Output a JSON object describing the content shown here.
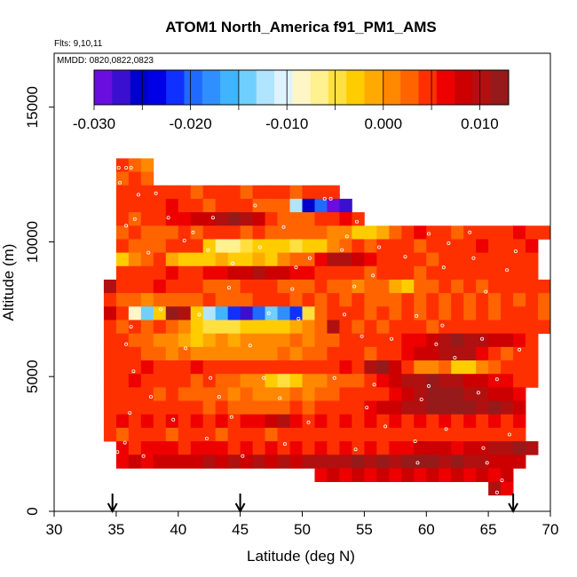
{
  "chart_data": {
    "type": "heatmap",
    "title": "ATOM1 North_America f91_PM1_AMS",
    "annotations": [
      "Flts: 9,10,11",
      "MMDD: 0820,0822,0823"
    ],
    "xlabel": "Latitude (deg N)",
    "ylabel": "Altitude (m)",
    "xlim": [
      30,
      70
    ],
    "ylim": [
      0,
      17500
    ],
    "xticks": [
      "30",
      "35",
      "40",
      "45",
      "50",
      "55",
      "60",
      "65",
      "70"
    ],
    "yticks": [
      "0",
      "5000",
      "10000",
      "15000"
    ],
    "colorbar": {
      "range": [
        -0.03,
        0.013
      ],
      "ticks": [
        "-0.030",
        "-0.020",
        "-0.010",
        "0.000",
        "0.010"
      ],
      "colors": [
        "#6a0ddf",
        "#3a0fd0",
        "#0000cc",
        "#0000e6",
        "#1030ff",
        "#1f6aff",
        "#2f8fff",
        "#40b4ff",
        "#6fd0ff",
        "#b0e4ff",
        "#dff3ff",
        "#fff6c8",
        "#fff090",
        "#ffe040",
        "#ffcc00",
        "#ffaa00",
        "#ff8800",
        "#ff6400",
        "#ff3000",
        "#ee0000",
        "#cc0000",
        "#b01010",
        "#961a1a"
      ]
    },
    "arrows_at_latitude": [
      34.7,
      45,
      67
    ],
    "lat_step": 1,
    "rows": [
      {
        "alt": 12850,
        "lat0": 35,
        "v": [
          0.004,
          0.003,
          0.001
        ]
      },
      {
        "alt": 12350,
        "lat0": 35,
        "v": [
          0.003,
          0.005,
          0.002
        ]
      },
      {
        "alt": 11850,
        "lat0": 35,
        "v": [
          0.005,
          0.004,
          0.004,
          0.004,
          0.005,
          0.004,
          0.003,
          0.004,
          0.005,
          0.004,
          0.003,
          0.004,
          0.005,
          0.004,
          0.003,
          0.004,
          0.005,
          0.004
        ]
      },
      {
        "alt": 11350,
        "lat0": 35,
        "v": [
          0.004,
          0.005,
          0.004,
          0.005,
          0.006,
          0.005,
          0.004,
          0.003,
          0.004,
          0.005,
          0.004,
          0.003,
          0.002,
          0.003,
          -0.012,
          -0.025,
          -0.02,
          -0.03,
          -0.028
        ]
      },
      {
        "alt": 10850,
        "lat0": 35,
        "v": [
          0.004,
          0.003,
          0.004,
          0.005,
          0.006,
          0.007,
          0.008,
          0.009,
          0.011,
          0.012,
          0.011,
          0.009,
          0.005,
          0.003,
          0.002,
          0.003,
          0.004,
          0.005,
          0.006,
          0.005
        ]
      },
      {
        "alt": 10350,
        "lat0": 35,
        "v": [
          0.003,
          0.004,
          0.003,
          0.002,
          0.003,
          0.004,
          0.003,
          0.004,
          0.005,
          0.004,
          0.003,
          0.004,
          0.003,
          0.003,
          0.002,
          0.003,
          0.002,
          0.001,
          0.0,
          -0.002,
          -0.003,
          -0.001,
          0.002,
          0.004,
          0.006,
          0.005,
          0.004,
          0.003,
          0.004,
          0.005,
          0.004,
          0.005,
          0.006,
          0.005,
          0.004
        ]
      },
      {
        "alt": 9850,
        "lat0": 35,
        "v": [
          0.004,
          0.003,
          0.002,
          0.003,
          0.004,
          0.005,
          0.004,
          -0.002,
          -0.006,
          -0.007,
          -0.004,
          -0.003,
          -0.002,
          -0.003,
          -0.005,
          -0.003,
          -0.002,
          0.0,
          0.003,
          0.004,
          0.003,
          0.004,
          0.005,
          0.004,
          0.003,
          0.004,
          0.005,
          0.004,
          0.005,
          0.006,
          0.005,
          0.004,
          0.005,
          0.006
        ]
      },
      {
        "alt": 9350,
        "lat0": 35,
        "v": [
          -0.003,
          0.0,
          0.002,
          0.004,
          -0.001,
          -0.002,
          -0.003,
          -0.002,
          -0.001,
          -0.003,
          -0.002,
          -0.001,
          -0.002,
          0.0,
          0.002,
          0.003,
          0.006,
          0.01,
          0.011,
          0.009,
          0.006,
          0.005,
          0.004,
          0.005,
          0.004,
          0.003,
          0.004,
          0.005,
          0.004,
          0.005,
          0.004,
          0.005,
          0.004,
          0.005
        ]
      },
      {
        "alt": 8850,
        "lat0": 35,
        "v": [
          0.004,
          0.005,
          0.004,
          0.005,
          0.006,
          0.005,
          0.004,
          0.006,
          0.007,
          0.008,
          0.009,
          0.01,
          0.009,
          0.008,
          0.007,
          0.006,
          0.005,
          0.004,
          0.005,
          0.004,
          0.003,
          0.004,
          0.005,
          0.004,
          0.003,
          0.004,
          0.005,
          0.004,
          0.005,
          0.004,
          0.005,
          0.004,
          0.005,
          0.004
        ]
      },
      {
        "alt": 8350,
        "lat0": 34,
        "v": [
          0.01,
          0.005,
          0.004,
          0.005,
          0.006,
          0.005,
          0.004,
          0.005,
          0.003,
          0.002,
          0.003,
          0.004,
          0.005,
          0.004,
          0.003,
          0.002,
          0.003,
          0.004,
          0.003,
          0.002,
          0.001,
          0.002,
          0.003,
          -0.001,
          -0.003,
          0.002,
          0.003,
          0.004,
          0.003,
          0.004,
          0.003,
          0.004,
          0.005,
          0.004,
          0.005,
          0.004
        ]
      },
      {
        "alt": 7850,
        "lat0": 34,
        "v": [
          0.004,
          0.003,
          0.002,
          0.001,
          0.002,
          0.003,
          0.002,
          0.003,
          0.004,
          0.003,
          0.002,
          0.003,
          0.004,
          0.005,
          0.004,
          0.003,
          0.004,
          0.003,
          0.004,
          0.003,
          0.004,
          0.003,
          0.002,
          0.003,
          0.004,
          0.003,
          0.004,
          0.003,
          0.004,
          0.003,
          0.004,
          0.003,
          0.004,
          0.003,
          0.004,
          0.003
        ]
      },
      {
        "alt": 7350,
        "lat0": 34,
        "v": [
          0.008,
          0.005,
          -0.008,
          -0.014,
          -0.002,
          0.012,
          0.01,
          -0.003,
          -0.012,
          -0.016,
          -0.022,
          -0.028,
          -0.02,
          -0.014,
          -0.018,
          -0.022,
          -0.004,
          0.002,
          0.004,
          0.005,
          0.004,
          0.003,
          0.004,
          0.003,
          0.004,
          0.003,
          0.004,
          0.003,
          0.004,
          0.003,
          0.004,
          0.003,
          0.004,
          0.005,
          0.004,
          0.003
        ]
      },
      {
        "alt": 6850,
        "lat0": 34,
        "v": [
          0.004,
          0.003,
          0.004,
          0.003,
          0.004,
          0.003,
          0.001,
          -0.003,
          -0.004,
          -0.005,
          -0.004,
          -0.003,
          -0.002,
          -0.003,
          -0.002,
          -0.001,
          0.0,
          0.002,
          0.01,
          0.004,
          0.003,
          0.004,
          0.003,
          0.004,
          0.005,
          0.004,
          0.003,
          0.004,
          0.005,
          0.004,
          0.005,
          0.004,
          0.005,
          0.004,
          0.005,
          0.004
        ]
      },
      {
        "alt": 6350,
        "lat0": 34,
        "v": [
          0.004,
          0.005,
          0.003,
          0.002,
          0.001,
          0.0,
          -0.001,
          -0.002,
          -0.001,
          0.0,
          -0.001,
          0.0,
          0.001,
          0.0,
          0.001,
          0.002,
          0.001,
          0.002,
          0.003,
          0.004,
          0.005,
          0.004,
          0.005,
          0.004,
          0.006,
          0.007,
          0.009,
          0.011,
          0.012,
          0.011,
          0.01,
          0.009,
          0.008,
          0.006,
          0.005
        ]
      },
      {
        "alt": 5850,
        "lat0": 34,
        "v": [
          0.004,
          0.005,
          0.004,
          0.003,
          0.002,
          0.001,
          0.002,
          0.001,
          0.0,
          0.001,
          0.0,
          0.001,
          0.0,
          0.001,
          0.002,
          0.001,
          0.002,
          0.003,
          0.004,
          0.005,
          0.004,
          0.003,
          0.004,
          0.005,
          0.006,
          0.008,
          0.009,
          0.01,
          0.011,
          0.01,
          0.006,
          0.004,
          0.003,
          0.004,
          0.005
        ]
      },
      {
        "alt": 5350,
        "lat0": 34,
        "v": [
          0.005,
          0.004,
          0.005,
          0.006,
          0.005,
          0.004,
          0.005,
          0.006,
          0.005,
          0.004,
          0.005,
          0.004,
          0.005,
          0.004,
          0.005,
          0.004,
          0.005,
          0.004,
          0.005,
          0.006,
          0.005,
          0.01,
          0.012,
          0.008,
          0.004,
          0.0,
          0.0,
          0.002,
          -0.003,
          -0.002,
          0.0,
          0.003,
          0.005,
          0.004,
          0.005
        ]
      },
      {
        "alt": 4850,
        "lat0": 34,
        "v": [
          0.004,
          0.005,
          0.006,
          0.005,
          0.004,
          0.005,
          0.004,
          0.003,
          0.004,
          0.003,
          0.002,
          0.001,
          0.0,
          -0.003,
          -0.004,
          -0.002,
          0.0,
          0.001,
          0.002,
          0.003,
          0.002,
          0.004,
          0.006,
          0.008,
          0.01,
          0.011,
          0.012,
          0.011,
          0.01,
          0.009,
          0.008,
          0.007,
          0.006,
          0.005,
          0.005
        ]
      },
      {
        "alt": 4350,
        "lat0": 34,
        "v": [
          0.005,
          0.004,
          0.005,
          0.004,
          0.003,
          0.004,
          0.003,
          0.002,
          0.003,
          0.002,
          0.001,
          0.002,
          0.001,
          0.0,
          0.001,
          0.002,
          0.001,
          0.002,
          0.003,
          0.004,
          0.005,
          0.004,
          0.005,
          0.006,
          0.008,
          0.01,
          0.012,
          0.013,
          0.012,
          0.011,
          0.01,
          0.009,
          0.008,
          0.006
        ]
      },
      {
        "alt": 3850,
        "lat0": 34,
        "v": [
          0.005,
          0.004,
          0.005,
          0.004,
          0.005,
          0.004,
          0.005,
          0.004,
          0.003,
          0.004,
          0.003,
          0.002,
          0.003,
          0.002,
          0.003,
          0.004,
          0.003,
          0.004,
          0.005,
          0.004,
          0.005,
          0.006,
          0.008,
          0.009,
          0.01,
          0.011,
          0.012,
          0.013,
          0.013,
          0.012,
          0.011,
          0.012,
          0.011,
          0.009
        ]
      },
      {
        "alt": 3350,
        "lat0": 34,
        "v": [
          0.005,
          0.006,
          0.005,
          0.006,
          0.005,
          0.006,
          0.005,
          0.006,
          0.005,
          0.006,
          0.005,
          0.006,
          0.007,
          0.008,
          0.01,
          0.007,
          0.005,
          0.006,
          0.005,
          0.006,
          0.005,
          0.006,
          0.005,
          0.006,
          0.005,
          0.006,
          0.005,
          0.006,
          0.005,
          0.006,
          0.005,
          0.006,
          0.005,
          0.006
        ]
      },
      {
        "alt": 2850,
        "lat0": 34,
        "v": [
          0.004,
          0.003,
          0.004,
          0.005,
          0.004,
          0.003,
          0.004,
          0.005,
          0.004,
          0.003,
          0.004,
          0.005,
          0.004,
          0.003,
          0.004,
          0.005,
          0.004,
          0.005,
          0.004,
          0.005,
          0.004,
          0.005,
          0.004,
          0.005,
          0.004,
          0.005,
          0.004,
          0.005,
          0.004,
          0.005,
          0.004,
          0.005,
          0.004,
          0.005
        ]
      },
      {
        "alt": 2350,
        "lat0": 35,
        "v": [
          0.006,
          0.005,
          0.006,
          0.007,
          0.006,
          0.005,
          0.006,
          0.007,
          0.006,
          0.005,
          0.006,
          0.005,
          0.006,
          0.005,
          0.006,
          0.005,
          0.006,
          0.005,
          0.006,
          0.005,
          0.006,
          0.005,
          0.006,
          0.007,
          0.008,
          0.009,
          0.008,
          0.007,
          0.008,
          0.009,
          0.01,
          0.011,
          0.012,
          0.011
        ]
      },
      {
        "alt": 1850,
        "lat0": 35,
        "v": [
          0.007,
          0.008,
          0.007,
          0.008,
          0.009,
          0.008,
          0.009,
          0.01,
          0.009,
          0.01,
          0.009,
          0.01,
          0.009,
          0.01,
          0.009,
          0.01,
          0.011,
          0.01,
          0.011,
          0.012,
          0.011,
          0.012,
          0.011,
          0.012,
          0.013,
          0.012,
          0.011,
          0.012,
          0.011,
          0.01,
          0.009,
          0.008,
          0.009
        ]
      },
      {
        "alt": 1350,
        "lat0": 51,
        "v": [
          0.007,
          0.008,
          0.007,
          0.008,
          0.007,
          0.008,
          0.007,
          0.008,
          0.007,
          0.008,
          0.007,
          0.008,
          0.007,
          0.008,
          0.007,
          0.008
        ]
      },
      {
        "alt": 850,
        "lat0": 65,
        "v": [
          0.01,
          0.006
        ]
      }
    ],
    "points": [
      [
        35.2,
        12750
      ],
      [
        35.8,
        12750
      ],
      [
        36.2,
        12750
      ],
      [
        35.3,
        12200
      ],
      [
        36.8,
        11750
      ],
      [
        38.2,
        11800
      ],
      [
        46.2,
        11350
      ],
      [
        51.8,
        11600
      ],
      [
        52.3,
        11600
      ],
      [
        57.8,
        11150
      ],
      [
        68.5,
        10750
      ],
      [
        36.5,
        10850
      ],
      [
        39.2,
        10900
      ],
      [
        42.8,
        10900
      ],
      [
        54.4,
        10750
      ],
      [
        61.2,
        10850
      ],
      [
        35.8,
        10600
      ],
      [
        48.5,
        10550
      ],
      [
        41.2,
        10350
      ],
      [
        53.6,
        10200
      ],
      [
        60.2,
        10300
      ],
      [
        63.5,
        10350
      ],
      [
        40.5,
        10050
      ],
      [
        46.6,
        9800
      ],
      [
        53.2,
        9700
      ],
      [
        56.2,
        9800
      ],
      [
        61.8,
        9950
      ],
      [
        67.2,
        9650
      ],
      [
        37.6,
        9600
      ],
      [
        42.4,
        9700
      ],
      [
        50.6,
        9400
      ],
      [
        58.3,
        9450
      ],
      [
        63.8,
        9400
      ],
      [
        69.2,
        9700
      ],
      [
        44.4,
        9200
      ],
      [
        49.5,
        9050
      ],
      [
        61.4,
        9050
      ],
      [
        66.5,
        8950
      ],
      [
        55.7,
        8750
      ],
      [
        44.1,
        8300
      ],
      [
        54.2,
        8350
      ],
      [
        49.2,
        8250
      ],
      [
        64.8,
        8150
      ],
      [
        38.6,
        7500
      ],
      [
        41.7,
        7300
      ],
      [
        47.3,
        7350
      ],
      [
        49.7,
        7150
      ],
      [
        53.4,
        7300
      ],
      [
        59.2,
        7250
      ],
      [
        36.2,
        6850
      ],
      [
        57.2,
        6400
      ],
      [
        61.3,
        6900
      ],
      [
        64.5,
        6400
      ],
      [
        35.8,
        6200
      ],
      [
        40.6,
        6050
      ],
      [
        45.8,
        6150
      ],
      [
        54.8,
        6500
      ],
      [
        60.8,
        6200
      ],
      [
        62.3,
        5700
      ],
      [
        67.5,
        6000
      ],
      [
        36.4,
        5200
      ],
      [
        42.6,
        4950
      ],
      [
        46.9,
        4950
      ],
      [
        52.6,
        4950
      ],
      [
        55.8,
        4700
      ],
      [
        60.2,
        4650
      ],
      [
        65.7,
        4900
      ],
      [
        37.8,
        4250
      ],
      [
        43.3,
        4250
      ],
      [
        48.2,
        4200
      ],
      [
        55.2,
        3850
      ],
      [
        59.6,
        4150
      ],
      [
        64.2,
        4400
      ],
      [
        36.1,
        3650
      ],
      [
        39.6,
        3400
      ],
      [
        44.3,
        3500
      ],
      [
        50.5,
        3300
      ],
      [
        56.7,
        3150
      ],
      [
        61.6,
        3050
      ],
      [
        66.7,
        2850
      ],
      [
        35.7,
        2550
      ],
      [
        42.3,
        2700
      ],
      [
        48.6,
        2500
      ],
      [
        54.3,
        2300
      ],
      [
        59.1,
        2600
      ],
      [
        64.6,
        2350
      ],
      [
        35.1,
        2200
      ],
      [
        37.2,
        2050
      ],
      [
        45.2,
        2050
      ],
      [
        59.3,
        1800
      ],
      [
        64.9,
        1800
      ],
      [
        66.1,
        1150
      ],
      [
        65.7,
        700
      ]
    ]
  }
}
